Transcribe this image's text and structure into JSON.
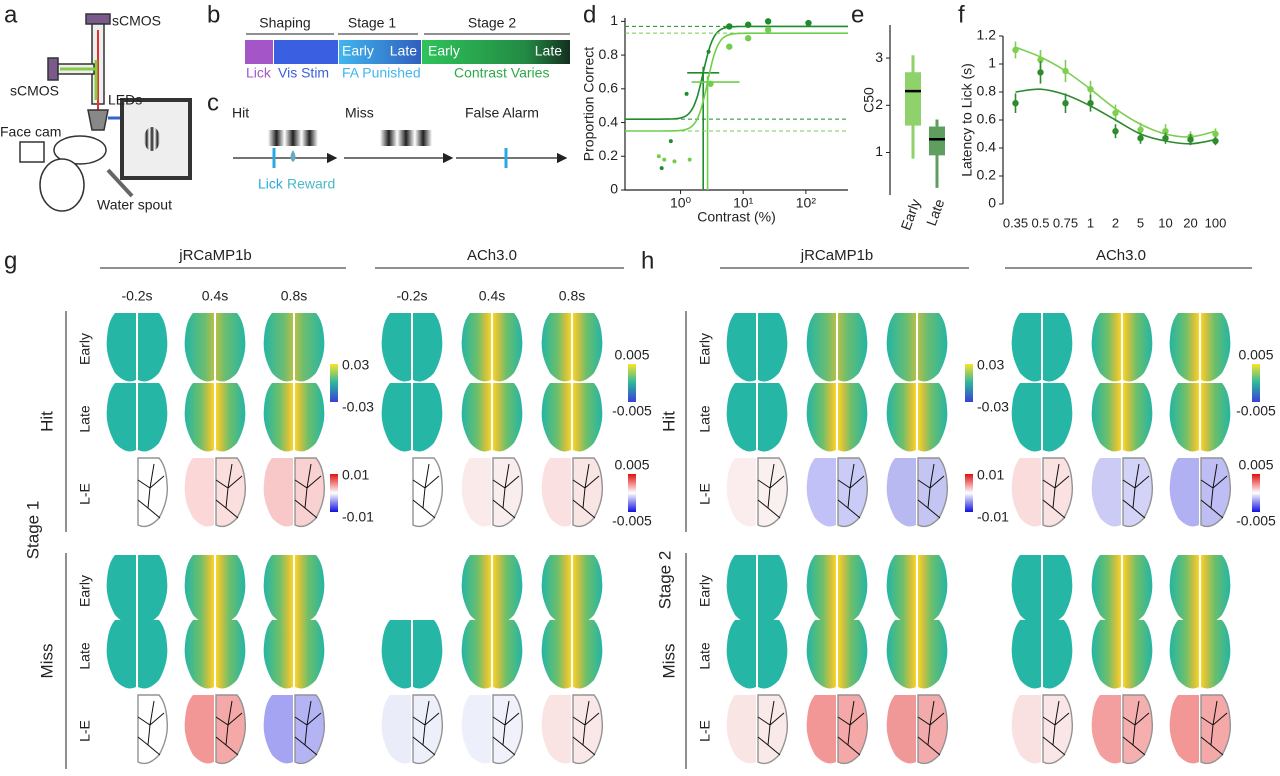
{
  "panel_labels": [
    "a",
    "b",
    "c",
    "d",
    "e",
    "f",
    "g",
    "h"
  ],
  "a": {
    "labels": [
      "sCMOS",
      "sCMOS",
      "LEDs",
      "Face cam",
      "Water spout"
    ]
  },
  "b": {
    "phases": [
      "Shaping",
      "Stage 1",
      "Stage 2"
    ],
    "segments": [
      "Early",
      "Late",
      "Early",
      "Late"
    ],
    "notes": [
      "Lick",
      "Vis Stim",
      "FA Punished",
      "Contrast Varies"
    ]
  },
  "c": {
    "trials": [
      "Hit",
      "Miss",
      "False Alarm"
    ],
    "events": [
      "Lick",
      "Reward"
    ]
  },
  "chart_data": [
    {
      "type": "scatter",
      "ylabel": "Proportion Correct",
      "xlabel": "Contrast (%)",
      "log_x": true,
      "xlim": [
        0.13,
        470
      ],
      "xticks": [
        {
          "value": 1,
          "label": "10⁰"
        },
        {
          "value": 10,
          "label": "10¹"
        },
        {
          "value": 100,
          "label": "10²"
        }
      ],
      "ylim": [
        0,
        1.02
      ],
      "yticks": [
        0,
        0.2,
        0.4,
        0.6,
        0.8,
        1
      ],
      "series": [
        {
          "color": "#1e8c2c",
          "x": [
            0.5,
            0.7,
            1.25,
            2.8,
            6,
            12,
            25,
            110
          ],
          "values": [
            0.13,
            0.29,
            0.57,
            0.82,
            0.97,
            0.98,
            1.0,
            0.99
          ],
          "fit": {
            "lower": 0.42,
            "upper": 0.97,
            "threshold": 2.3
          }
        },
        {
          "color": "#6fcf4a",
          "x": [
            0.45,
            0.55,
            0.8,
            1.4,
            3,
            6,
            12,
            25
          ],
          "values": [
            0.2,
            0.18,
            0.17,
            0.18,
            0.63,
            0.85,
            0.9,
            0.95
          ],
          "fit": {
            "lower": 0.35,
            "upper": 0.93,
            "threshold": 2.7
          }
        }
      ]
    },
    {
      "type": "box",
      "ylabel": "C50",
      "categories": [
        "Early",
        "Late"
      ],
      "ylim": [
        0.1,
        3.7
      ],
      "yticks": [
        1,
        2,
        3
      ],
      "boxes": [
        {
          "color": "#8fd16a",
          "whisker_low": 0.87,
          "q1": 1.57,
          "median": 2.3,
          "q3": 2.7,
          "whisker_high": 3.06
        },
        {
          "color": "#5e9e5e",
          "whisker_low": 0.25,
          "q1": 0.94,
          "median": 1.28,
          "q3": 1.55,
          "whisker_high": 1.7
        }
      ]
    },
    {
      "type": "line",
      "ylabel": "Latency to Lick (s)",
      "categories": [
        "0.35",
        "0.5",
        "0.75",
        "1",
        "2",
        "5",
        "10",
        "20",
        "100"
      ],
      "ylim": [
        0,
        1.2
      ],
      "yticks": [
        0,
        0.2,
        0.4,
        0.6,
        0.8,
        1,
        1.2
      ],
      "series": [
        {
          "color": "#7ccf4f",
          "values": [
            1.1,
            1.03,
            0.95,
            0.82,
            0.65,
            0.53,
            0.52,
            0.48,
            0.5
          ],
          "errors": [
            0.06,
            0.07,
            0.08,
            0.06,
            0.06,
            0.05,
            0.05,
            0.04,
            0.04
          ],
          "fit": [
            1.12,
            1.05,
            0.95,
            0.82,
            0.68,
            0.57,
            0.5,
            0.48,
            0.52
          ]
        },
        {
          "color": "#2e8b2e",
          "values": [
            0.72,
            0.94,
            0.72,
            0.72,
            0.52,
            0.47,
            0.47,
            0.46,
            0.45
          ],
          "errors": [
            0.07,
            0.08,
            0.07,
            0.06,
            0.05,
            0.04,
            0.04,
            0.04,
            0.03
          ],
          "fit": [
            0.8,
            0.82,
            0.78,
            0.7,
            0.6,
            0.5,
            0.45,
            0.43,
            0.46
          ]
        }
      ]
    }
  ],
  "g": {
    "indicators": [
      "jRCaMP1b",
      "ACh3.0"
    ],
    "times": [
      "-0.2s",
      "0.4s",
      "0.8s"
    ],
    "stage": "Stage 1",
    "outcomes": [
      "Hit",
      "Miss"
    ],
    "rows": [
      "Early",
      "Late",
      "L-E"
    ],
    "colorbars": {
      "activity": [
        [
          0.03,
          -0.03
        ],
        [
          0.005,
          -0.005
        ]
      ],
      "difference": [
        [
          0.01,
          -0.01
        ],
        [
          0.005,
          -0.005
        ]
      ]
    }
  },
  "h": {
    "indicators": [
      "jRCaMP1b",
      "ACh3.0"
    ],
    "stage": "Stage 2",
    "outcomes": [
      "Hit",
      "Miss"
    ],
    "rows": [
      "Early",
      "Late",
      "L-E"
    ],
    "colorbars": {
      "activity": [
        [
          0.03,
          -0.03
        ],
        [
          0.005,
          -0.005
        ]
      ],
      "difference": [
        [
          0.01,
          -0.01
        ],
        [
          0.005,
          -0.005
        ]
      ]
    }
  }
}
